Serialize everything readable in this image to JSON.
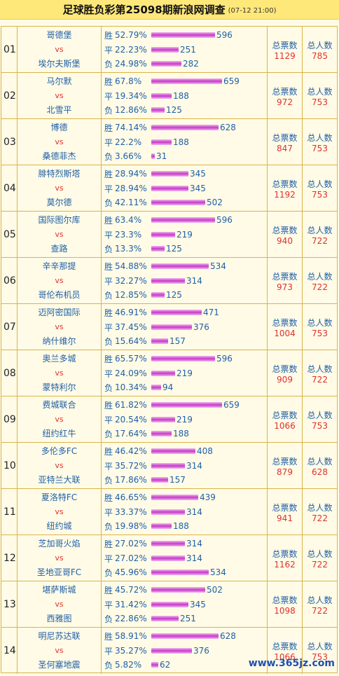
{
  "header": {
    "title": "足球胜负彩第25098期新浪网调查",
    "time": "(07-12 21:00)"
  },
  "labels": {
    "win": "胜",
    "draw": "平",
    "lose": "负",
    "vs": "vs",
    "total_votes": "总票数",
    "total_people": "总人数"
  },
  "matches": [
    {
      "no": "01",
      "home": "哥德堡",
      "away": "埃尔夫斯堡",
      "win_pct": "52.79%",
      "win": 596,
      "draw_pct": "22.23%",
      "draw": 251,
      "lose_pct": "24.98%",
      "lose": 282,
      "votes": "1129",
      "people": "785"
    },
    {
      "no": "02",
      "home": "马尔默",
      "away": "北雪平",
      "win_pct": "67.8%",
      "win": 659,
      "draw_pct": "19.34%",
      "draw": 188,
      "lose_pct": "12.86%",
      "lose": 125,
      "votes": "972",
      "people": "753"
    },
    {
      "no": "03",
      "home": "博德",
      "away": "桑德菲杰",
      "win_pct": "74.14%",
      "win": 628,
      "draw_pct": "22.2%",
      "draw": 188,
      "lose_pct": "3.66%",
      "lose": 31,
      "votes": "847",
      "people": "753"
    },
    {
      "no": "04",
      "home": "腓特烈斯塔",
      "away": "莫尔德",
      "win_pct": "28.94%",
      "win": 345,
      "draw_pct": "28.94%",
      "draw": 345,
      "lose_pct": "42.11%",
      "lose": 502,
      "votes": "1192",
      "people": "753"
    },
    {
      "no": "05",
      "home": "国际图尔库",
      "away": "查路",
      "win_pct": "63.4%",
      "win": 596,
      "draw_pct": "23.3%",
      "draw": 219,
      "lose_pct": "13.3%",
      "lose": 125,
      "votes": "940",
      "people": "722"
    },
    {
      "no": "06",
      "home": "辛辛那提",
      "away": "哥伦布机员",
      "win_pct": "54.88%",
      "win": 534,
      "draw_pct": "32.27%",
      "draw": 314,
      "lose_pct": "12.85%",
      "lose": 125,
      "votes": "973",
      "people": "722"
    },
    {
      "no": "07",
      "home": "迈阿密国际",
      "away": "纳什维尔",
      "win_pct": "46.91%",
      "win": 471,
      "draw_pct": "37.45%",
      "draw": 376,
      "lose_pct": "15.64%",
      "lose": 157,
      "votes": "1004",
      "people": "753"
    },
    {
      "no": "08",
      "home": "奥兰多城",
      "away": "蒙特利尔",
      "win_pct": "65.57%",
      "win": 596,
      "draw_pct": "24.09%",
      "draw": 219,
      "lose_pct": "10.34%",
      "lose": 94,
      "votes": "909",
      "people": "722"
    },
    {
      "no": "09",
      "home": "费城联合",
      "away": "纽约红牛",
      "win_pct": "61.82%",
      "win": 659,
      "draw_pct": "20.54%",
      "draw": 219,
      "lose_pct": "17.64%",
      "lose": 188,
      "votes": "1066",
      "people": "753"
    },
    {
      "no": "10",
      "home": "多伦多FC",
      "away": "亚特兰大联",
      "win_pct": "46.42%",
      "win": 408,
      "draw_pct": "35.72%",
      "draw": 314,
      "lose_pct": "17.86%",
      "lose": 157,
      "votes": "879",
      "people": "628"
    },
    {
      "no": "11",
      "home": "夏洛特FC",
      "away": "纽约城",
      "win_pct": "46.65%",
      "win": 439,
      "draw_pct": "33.37%",
      "draw": 314,
      "lose_pct": "19.98%",
      "lose": 188,
      "votes": "941",
      "people": "722"
    },
    {
      "no": "12",
      "home": "芝加哥火焰",
      "away": "圣地亚哥FC",
      "win_pct": "27.02%",
      "win": 314,
      "draw_pct": "27.02%",
      "draw": 314,
      "lose_pct": "45.96%",
      "lose": 534,
      "votes": "1162",
      "people": "722"
    },
    {
      "no": "13",
      "home": "堪萨斯城",
      "away": "西雅图",
      "win_pct": "45.72%",
      "win": 502,
      "draw_pct": "31.42%",
      "draw": 345,
      "lose_pct": "22.86%",
      "lose": 251,
      "votes": "1098",
      "people": "722"
    },
    {
      "no": "14",
      "home": "明尼苏达联",
      "away": "圣何塞地震",
      "win_pct": "58.91%",
      "win": 628,
      "draw_pct": "35.27%",
      "draw": 376,
      "lose_pct": "5.82%",
      "lose": 62,
      "votes": "1066",
      "people": "753"
    }
  ],
  "watermark": "www.365jz.com"
}
